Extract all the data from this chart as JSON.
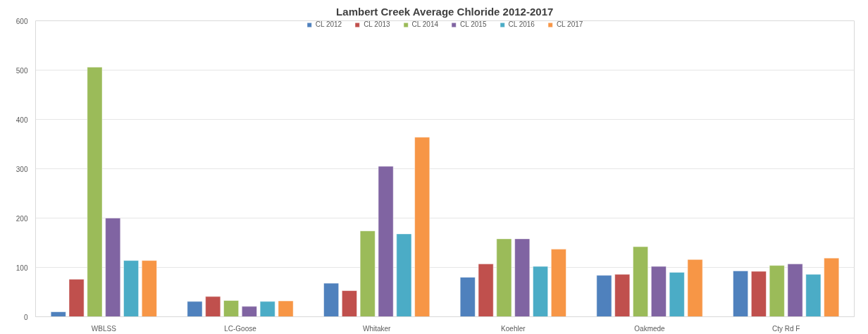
{
  "chart_data": {
    "type": "bar",
    "title": "Lambert Creek Average Chloride 2012-2017",
    "categories": [
      "WBLSS",
      "LC-Goose",
      "Whitaker",
      "Koehler",
      "Oakmede",
      "Cty Rd F"
    ],
    "series": [
      {
        "name": "CL 2012",
        "color": "#4f81bd",
        "values": [
          10,
          31,
          68,
          80,
          84,
          93
        ]
      },
      {
        "name": "CL 2013",
        "color": "#c0504d",
        "values": [
          76,
          41,
          53,
          107,
          86,
          92
        ]
      },
      {
        "name": "CL 2014",
        "color": "#9bbb59",
        "values": [
          506,
          33,
          174,
          158,
          142,
          104
        ]
      },
      {
        "name": "CL 2015",
        "color": "#8064a2",
        "values": [
          200,
          21,
          305,
          158,
          102,
          107
        ]
      },
      {
        "name": "CL 2016",
        "color": "#4bacc6",
        "values": [
          114,
          31,
          168,
          102,
          90,
          86
        ]
      },
      {
        "name": "CL 2017",
        "color": "#f79646",
        "values": [
          114,
          32,
          364,
          137,
          116,
          119
        ]
      }
    ],
    "ylim": [
      0,
      600
    ],
    "yticks": [
      0,
      100,
      200,
      300,
      400,
      500,
      600
    ],
    "grid": "y",
    "legend": "top"
  }
}
